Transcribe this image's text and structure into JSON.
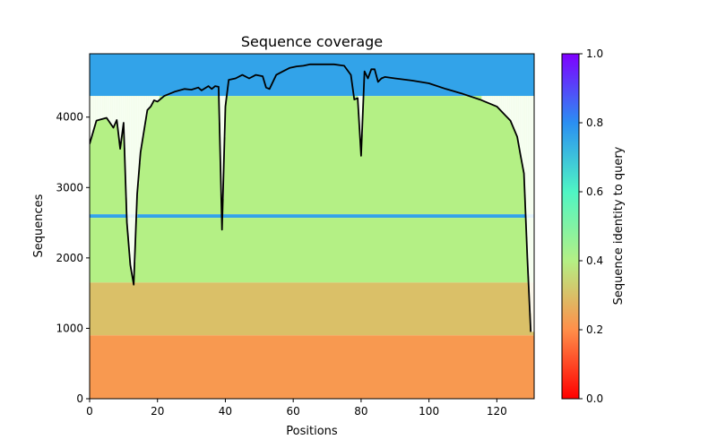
{
  "chart_data": {
    "type": "heatmap",
    "title": "Sequence coverage",
    "xlabel": "Positions",
    "ylabel": "Sequences",
    "xlim": [
      0,
      131
    ],
    "ylim": [
      0,
      4900
    ],
    "xticks": [
      0,
      20,
      40,
      60,
      80,
      100,
      120
    ],
    "yticks": [
      0,
      1000,
      2000,
      3000,
      4000
    ],
    "grid": false,
    "colorbar": {
      "label": "Sequence identity to query",
      "range": [
        0.0,
        1.0
      ],
      "ticks": [
        "0.0",
        "0.2",
        "0.4",
        "0.6",
        "0.8",
        "1.0"
      ],
      "colormap": "rainbow_r"
    },
    "identity_bands": [
      {
        "y_from": 4300,
        "y_to": 4900,
        "identity": 0.76
      },
      {
        "y_from": 2620,
        "y_to": 4300,
        "identity": 0.4
      },
      {
        "y_from": 2570,
        "y_to": 2620,
        "identity": 0.76
      },
      {
        "y_from": 1650,
        "y_to": 2570,
        "identity": 0.4
      },
      {
        "y_from": 900,
        "y_to": 1650,
        "identity": 0.3
      },
      {
        "y_from": 0,
        "y_to": 900,
        "identity": 0.22
      }
    ],
    "series": [
      {
        "color": "#000000",
        "x": [
          0,
          2,
          5,
          7,
          8,
          9,
          10,
          11,
          12,
          13,
          14,
          15,
          16,
          17,
          18,
          19,
          20,
          22,
          25,
          28,
          30,
          32,
          33,
          35,
          36,
          37,
          38,
          39,
          40,
          41,
          43,
          45,
          47,
          49,
          51,
          52,
          53,
          55,
          57,
          59,
          61,
          63,
          65,
          68,
          72,
          75,
          77,
          78,
          79,
          80,
          81,
          82,
          83,
          84,
          85,
          86,
          87,
          90,
          95,
          100,
          105,
          110,
          115,
          120,
          122,
          124,
          126,
          127,
          128,
          129,
          130
        ],
        "y": [
          3620,
          3950,
          3990,
          3850,
          3960,
          3550,
          3920,
          2500,
          1900,
          1620,
          2900,
          3500,
          3800,
          4100,
          4150,
          4240,
          4220,
          4300,
          4360,
          4400,
          4390,
          4420,
          4380,
          4440,
          4400,
          4440,
          4430,
          2400,
          4150,
          4530,
          4550,
          4600,
          4550,
          4600,
          4580,
          4420,
          4400,
          4600,
          4650,
          4700,
          4720,
          4730,
          4750,
          4750,
          4750,
          4730,
          4600,
          4250,
          4270,
          3450,
          4650,
          4550,
          4680,
          4680,
          4500,
          4550,
          4570,
          4550,
          4520,
          4480,
          4400,
          4330,
          4250,
          4150,
          4050,
          3950,
          3720,
          3450,
          3200,
          2000,
          950
        ]
      }
    ]
  }
}
